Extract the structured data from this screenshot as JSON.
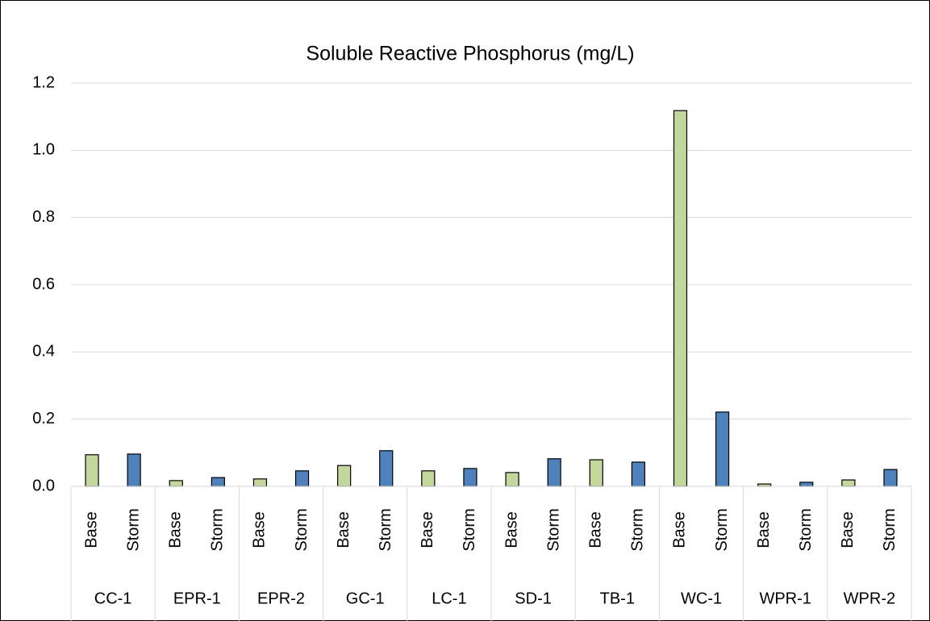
{
  "chart_data": {
    "type": "bar",
    "title": "Soluble Reactive Phosphorus (mg/L)",
    "categories": [
      "CC-1",
      "EPR-1",
      "EPR-2",
      "GC-1",
      "LC-1",
      "SD-1",
      "TB-1",
      "WC-1",
      "WPR-1",
      "WPR-2"
    ],
    "series": [
      {
        "name": "Base",
        "color": "#c3d69b",
        "values": [
          0.094,
          0.017,
          0.022,
          0.062,
          0.046,
          0.041,
          0.079,
          1.118,
          0.007,
          0.019
        ]
      },
      {
        "name": "Storm",
        "color": "#4f81bd",
        "values": [
          0.096,
          0.026,
          0.046,
          0.106,
          0.053,
          0.082,
          0.072,
          0.221,
          0.012,
          0.05
        ]
      }
    ],
    "ylim": [
      0,
      1.2
    ],
    "yticks": [
      {
        "value": 0,
        "label": "0.0"
      },
      {
        "value": 0.2,
        "label": "0.2"
      },
      {
        "value": 0.4,
        "label": "0.4"
      },
      {
        "value": 0.6,
        "label": "0.6"
      },
      {
        "value": 0.8,
        "label": "0.8"
      },
      {
        "value": 1,
        "label": "1.0"
      },
      {
        "value": 1.2,
        "label": "1.2"
      }
    ],
    "grid": true
  }
}
